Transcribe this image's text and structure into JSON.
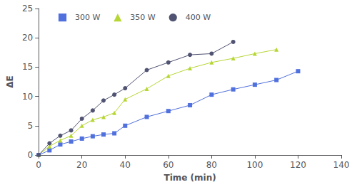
{
  "chart_data": {
    "type": "line",
    "xlabel": "Time (min)",
    "ylabel": "ΔE",
    "series": [
      {
        "name": "300 W",
        "marker": "square",
        "x": [
          0,
          5,
          10,
          15,
          20,
          25,
          30,
          35,
          40,
          50,
          60,
          70,
          80,
          90,
          100,
          110,
          120
        ],
        "values": [
          0,
          0.8,
          1.8,
          2.3,
          2.8,
          3.2,
          3.5,
          3.7,
          5.0,
          6.5,
          7.5,
          8.5,
          10.3,
          11.2,
          12.0,
          12.8,
          14.3
        ]
      },
      {
        "name": "350 W",
        "marker": "triangle",
        "x": [
          0,
          5,
          10,
          15,
          20,
          25,
          30,
          35,
          40,
          50,
          60,
          70,
          80,
          90,
          100,
          110
        ],
        "values": [
          0,
          1.5,
          2.5,
          3.3,
          5.0,
          6.0,
          6.5,
          7.2,
          9.5,
          11.3,
          13.5,
          14.8,
          15.8,
          16.5,
          17.3,
          18.0
        ]
      },
      {
        "name": "400 W",
        "marker": "circle",
        "x": [
          0,
          5,
          10,
          15,
          20,
          25,
          30,
          35,
          40,
          50,
          60,
          70,
          80,
          90
        ],
        "values": [
          0,
          2.0,
          3.3,
          4.2,
          6.2,
          7.6,
          9.3,
          10.3,
          11.4,
          14.5,
          15.8,
          17.1,
          17.3,
          19.3
        ]
      }
    ],
    "xlim": [
      0,
      140
    ],
    "xticks": [
      0,
      20,
      40,
      60,
      80,
      100,
      120,
      140
    ],
    "ylim": [
      0,
      25
    ],
    "yticks": [
      0,
      5,
      10,
      15,
      20,
      25
    ],
    "legend": "upper left",
    "grid": false
  }
}
